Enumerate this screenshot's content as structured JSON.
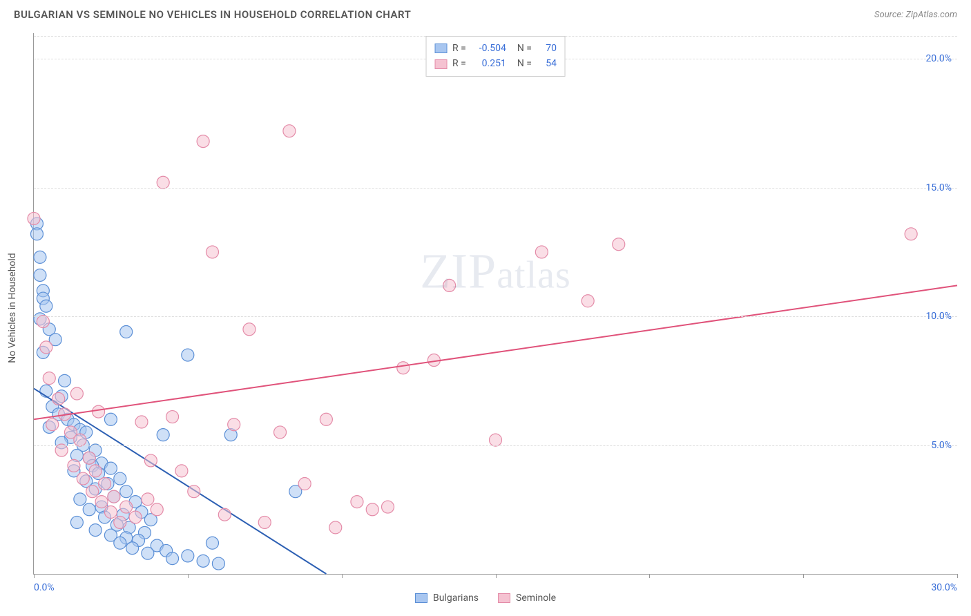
{
  "header": {
    "title": "BULGARIAN VS SEMINOLE NO VEHICLES IN HOUSEHOLD CORRELATION CHART",
    "source_prefix": "Source: ",
    "source": "ZipAtlas.com"
  },
  "chart": {
    "type": "scatter",
    "ylabel": "No Vehicles in Household",
    "watermark": "ZIPatlas",
    "background_color": "#ffffff",
    "grid_color": "#dddddd",
    "axis_color": "#999999",
    "label_color": "#3a6fd8",
    "xlim": [
      0,
      30
    ],
    "ylim": [
      0,
      21
    ],
    "xticks": [
      0,
      5,
      10,
      15,
      20,
      25,
      30
    ],
    "xtick_labels": [
      "0.0%",
      "",
      "",
      "",
      "",
      "",
      "30.0%"
    ],
    "yticks": [
      5,
      10,
      15,
      20
    ],
    "ytick_labels": [
      "5.0%",
      "10.0%",
      "15.0%",
      "20.0%"
    ],
    "marker_radius": 9,
    "marker_opacity": 0.55,
    "line_width": 2,
    "series": [
      {
        "name": "Bulgarians",
        "color_fill": "#a8c6f0",
        "color_stroke": "#5b8fd6",
        "line_color": "#2c5fb3",
        "r": -0.504,
        "n": 70,
        "trend": {
          "x1": 0,
          "y1": 7.2,
          "x2": 9.5,
          "y2": 0
        },
        "points": [
          [
            0.1,
            13.6
          ],
          [
            0.1,
            13.2
          ],
          [
            0.2,
            12.3
          ],
          [
            0.2,
            11.6
          ],
          [
            0.3,
            11.0
          ],
          [
            0.3,
            10.7
          ],
          [
            0.4,
            10.4
          ],
          [
            0.2,
            9.9
          ],
          [
            0.5,
            9.5
          ],
          [
            0.7,
            9.1
          ],
          [
            0.3,
            8.6
          ],
          [
            1.0,
            7.5
          ],
          [
            0.4,
            7.1
          ],
          [
            0.9,
            6.9
          ],
          [
            0.6,
            6.5
          ],
          [
            0.8,
            6.2
          ],
          [
            1.1,
            6.0
          ],
          [
            1.3,
            5.8
          ],
          [
            0.5,
            5.7
          ],
          [
            1.5,
            5.6
          ],
          [
            1.7,
            5.5
          ],
          [
            1.2,
            5.3
          ],
          [
            0.9,
            5.1
          ],
          [
            1.6,
            5.0
          ],
          [
            2.0,
            4.8
          ],
          [
            1.4,
            4.6
          ],
          [
            1.8,
            4.5
          ],
          [
            2.2,
            4.3
          ],
          [
            1.9,
            4.2
          ],
          [
            2.5,
            4.1
          ],
          [
            1.3,
            4.0
          ],
          [
            2.1,
            3.9
          ],
          [
            2.8,
            3.7
          ],
          [
            1.7,
            3.6
          ],
          [
            2.4,
            3.5
          ],
          [
            2.0,
            3.3
          ],
          [
            3.0,
            3.2
          ],
          [
            2.6,
            3.0
          ],
          [
            1.5,
            2.9
          ],
          [
            3.3,
            2.8
          ],
          [
            2.2,
            2.6
          ],
          [
            1.8,
            2.5
          ],
          [
            3.5,
            2.4
          ],
          [
            2.9,
            2.3
          ],
          [
            2.3,
            2.2
          ],
          [
            3.8,
            2.1
          ],
          [
            1.4,
            2.0
          ],
          [
            2.7,
            1.9
          ],
          [
            3.1,
            1.8
          ],
          [
            2.0,
            1.7
          ],
          [
            3.6,
            1.6
          ],
          [
            2.5,
            1.5
          ],
          [
            3.0,
            1.4
          ],
          [
            3.4,
            1.3
          ],
          [
            2.8,
            1.2
          ],
          [
            4.0,
            1.1
          ],
          [
            3.2,
            1.0
          ],
          [
            4.3,
            0.9
          ],
          [
            3.7,
            0.8
          ],
          [
            5.0,
            0.7
          ],
          [
            4.5,
            0.6
          ],
          [
            5.5,
            0.5
          ],
          [
            6.0,
            0.4
          ],
          [
            6.4,
            5.4
          ],
          [
            5.0,
            8.5
          ],
          [
            8.5,
            3.2
          ],
          [
            4.2,
            5.4
          ],
          [
            3.0,
            9.4
          ],
          [
            5.8,
            1.2
          ],
          [
            2.5,
            6.0
          ]
        ]
      },
      {
        "name": "Seminole",
        "color_fill": "#f5c2d1",
        "color_stroke": "#e48ba8",
        "line_color": "#e0527a",
        "r": 0.251,
        "n": 54,
        "trend": {
          "x1": 0,
          "y1": 6.0,
          "x2": 30,
          "y2": 11.2
        },
        "points": [
          [
            0.0,
            13.8
          ],
          [
            0.3,
            9.8
          ],
          [
            0.5,
            7.6
          ],
          [
            0.8,
            6.8
          ],
          [
            1.0,
            6.2
          ],
          [
            0.6,
            5.8
          ],
          [
            1.2,
            5.5
          ],
          [
            1.5,
            5.2
          ],
          [
            0.9,
            4.8
          ],
          [
            1.8,
            4.5
          ],
          [
            1.3,
            4.2
          ],
          [
            2.0,
            4.0
          ],
          [
            1.6,
            3.7
          ],
          [
            2.3,
            3.5
          ],
          [
            1.9,
            3.2
          ],
          [
            2.6,
            3.0
          ],
          [
            2.2,
            2.8
          ],
          [
            3.0,
            2.6
          ],
          [
            2.5,
            2.4
          ],
          [
            3.3,
            2.2
          ],
          [
            2.8,
            2.0
          ],
          [
            3.7,
            2.9
          ],
          [
            4.2,
            15.2
          ],
          [
            5.5,
            16.8
          ],
          [
            8.3,
            17.2
          ],
          [
            5.8,
            12.5
          ],
          [
            7.0,
            9.5
          ],
          [
            6.5,
            5.8
          ],
          [
            8.0,
            5.5
          ],
          [
            8.8,
            3.5
          ],
          [
            9.5,
            6.0
          ],
          [
            9.8,
            1.8
          ],
          [
            10.5,
            2.8
          ],
          [
            11.0,
            2.5
          ],
          [
            12.0,
            8.0
          ],
          [
            13.0,
            8.3
          ],
          [
            13.5,
            11.2
          ],
          [
            15.0,
            5.2
          ],
          [
            16.5,
            12.5
          ],
          [
            18.0,
            10.6
          ],
          [
            19.0,
            12.8
          ],
          [
            28.5,
            13.2
          ],
          [
            4.5,
            6.1
          ],
          [
            3.8,
            4.4
          ],
          [
            5.2,
            3.2
          ],
          [
            6.2,
            2.3
          ],
          [
            7.5,
            2.0
          ],
          [
            4.0,
            2.5
          ],
          [
            3.5,
            5.9
          ],
          [
            4.8,
            4.0
          ],
          [
            2.1,
            6.3
          ],
          [
            1.4,
            7.0
          ],
          [
            0.4,
            8.8
          ],
          [
            11.5,
            2.6
          ]
        ]
      }
    ],
    "legend_top": {
      "r_label": "R =",
      "n_label": "N ="
    },
    "legend_bottom": [
      {
        "label": "Bulgarians",
        "fill": "#a8c6f0",
        "stroke": "#5b8fd6"
      },
      {
        "label": "Seminole",
        "fill": "#f5c2d1",
        "stroke": "#e48ba8"
      }
    ]
  }
}
